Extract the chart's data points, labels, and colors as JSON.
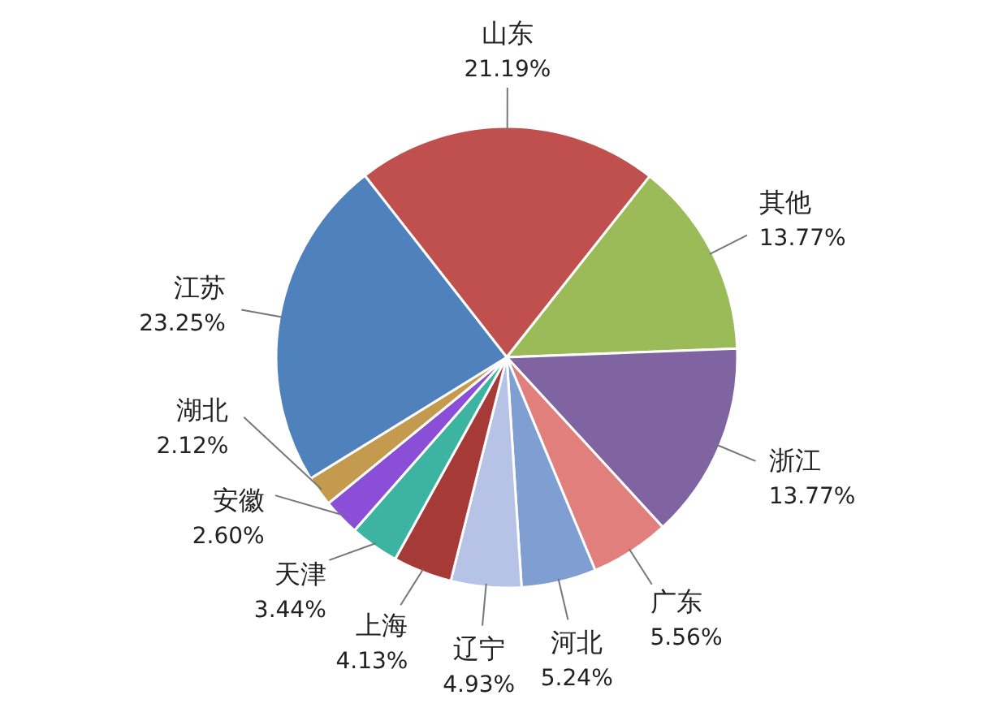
{
  "chart_data": {
    "type": "pie",
    "categories": [
      "山东",
      "其他",
      "浙江",
      "广东",
      "河北",
      "辽宁",
      "上海",
      "天津",
      "安徽",
      "湖北",
      "江苏"
    ],
    "values": [
      21.19,
      13.77,
      13.77,
      5.56,
      5.24,
      4.93,
      4.13,
      3.44,
      2.6,
      2.12,
      23.25
    ],
    "value_labels": [
      "21.19%",
      "13.77%",
      "13.77%",
      "5.56%",
      "5.24%",
      "4.93%",
      "4.13%",
      "3.44%",
      "2.60%",
      "2.12%",
      "23.25%"
    ],
    "colors": [
      "#c0504d",
      "#9bbb59",
      "#8064a2",
      "#e07f7c",
      "#7f9ed2",
      "#b7c3e6",
      "#a53a37",
      "#3db3a2",
      "#8a4fd6",
      "#c49a4e",
      "#4f81bd"
    ]
  }
}
